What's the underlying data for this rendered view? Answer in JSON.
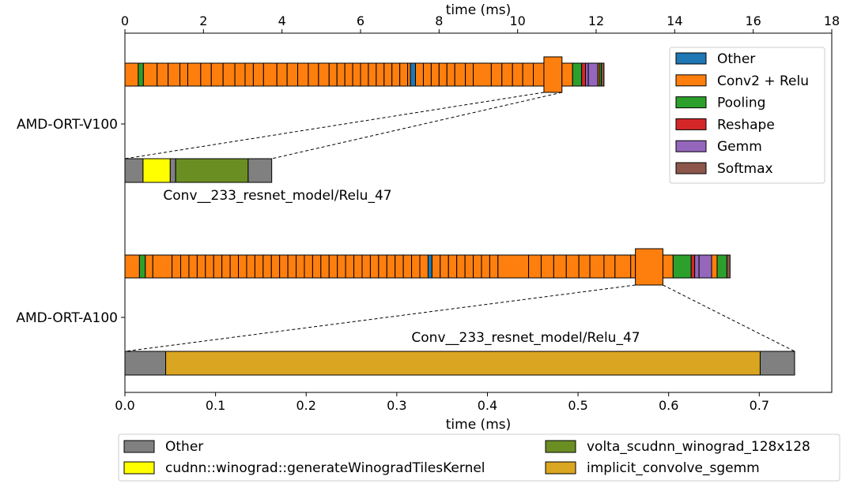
{
  "chart_data": {
    "type": "timeline",
    "top_axis": {
      "label": "time (ms)",
      "range": [
        0,
        18
      ],
      "ticks": [
        "0",
        "2",
        "4",
        "6",
        "8",
        "10",
        "12",
        "14",
        "16",
        "18"
      ]
    },
    "bottom_axis": {
      "label": "time (ms)",
      "range": [
        0.0,
        0.78
      ],
      "ticks": [
        "0.0",
        "0.1",
        "0.2",
        "0.3",
        "0.4",
        "0.5",
        "0.6",
        "0.7"
      ]
    },
    "rows": [
      "AMD-ORT-V100",
      "AMD-ORT-A100"
    ],
    "colors": {
      "Other": "#1f77b4",
      "Conv": "#ff7f0e",
      "Pooling": "#2ca02c",
      "Reshape": "#d62728",
      "Gemm": "#9467bd",
      "Softmax": "#8c564b",
      "K_Other": "#808080",
      "K_wino_tiles": "#ffff00",
      "K_volta": "#6b8e23",
      "K_sgemm": "#daa520"
    },
    "legend_ops": [
      {
        "key": "Other",
        "label": "Other"
      },
      {
        "key": "Conv",
        "label": "Conv2 + Relu"
      },
      {
        "key": "Pooling",
        "label": "Pooling"
      },
      {
        "key": "Reshape",
        "label": "Reshape"
      },
      {
        "key": "Gemm",
        "label": "Gemm"
      },
      {
        "key": "Softmax",
        "label": "Softmax"
      }
    ],
    "legend_kernels": [
      {
        "key": "K_Other",
        "label": "Other"
      },
      {
        "key": "K_wino_tiles",
        "label": "cudnn::winograd::generateWinogradTilesKernel"
      },
      {
        "key": "K_volta",
        "label": "volta_scudnn_winograd_128x128"
      },
      {
        "key": "K_sgemm",
        "label": "implicit_convolve_sgemm"
      }
    ],
    "v100_ops": [
      {
        "start": 0.0,
        "end": 0.34,
        "c": "Conv"
      },
      {
        "start": 0.34,
        "end": 0.47,
        "c": "Pooling"
      },
      {
        "start": 0.47,
        "end": 0.82,
        "c": "Conv"
      },
      {
        "start": 0.82,
        "end": 1.1,
        "c": "Conv"
      },
      {
        "start": 1.1,
        "end": 1.4,
        "c": "Conv"
      },
      {
        "start": 1.4,
        "end": 1.6,
        "c": "Conv"
      },
      {
        "start": 1.6,
        "end": 1.93,
        "c": "Conv"
      },
      {
        "start": 1.93,
        "end": 2.2,
        "c": "Conv"
      },
      {
        "start": 2.2,
        "end": 2.5,
        "c": "Conv"
      },
      {
        "start": 2.5,
        "end": 2.8,
        "c": "Conv"
      },
      {
        "start": 2.8,
        "end": 3.06,
        "c": "Conv"
      },
      {
        "start": 3.06,
        "end": 3.27,
        "c": "Conv"
      },
      {
        "start": 3.27,
        "end": 3.53,
        "c": "Conv"
      },
      {
        "start": 3.53,
        "end": 3.87,
        "c": "Conv"
      },
      {
        "start": 3.87,
        "end": 4.13,
        "c": "Conv"
      },
      {
        "start": 4.13,
        "end": 4.4,
        "c": "Conv"
      },
      {
        "start": 4.4,
        "end": 4.67,
        "c": "Conv"
      },
      {
        "start": 4.67,
        "end": 4.93,
        "c": "Conv"
      },
      {
        "start": 4.93,
        "end": 5.2,
        "c": "Conv"
      },
      {
        "start": 5.2,
        "end": 5.4,
        "c": "Conv"
      },
      {
        "start": 5.4,
        "end": 5.6,
        "c": "Conv"
      },
      {
        "start": 5.6,
        "end": 5.8,
        "c": "Conv"
      },
      {
        "start": 5.8,
        "end": 6.0,
        "c": "Conv"
      },
      {
        "start": 6.0,
        "end": 6.2,
        "c": "Conv"
      },
      {
        "start": 6.2,
        "end": 6.4,
        "c": "Conv"
      },
      {
        "start": 6.4,
        "end": 6.6,
        "c": "Conv"
      },
      {
        "start": 6.6,
        "end": 6.8,
        "c": "Conv"
      },
      {
        "start": 6.8,
        "end": 7.0,
        "c": "Conv"
      },
      {
        "start": 7.0,
        "end": 7.2,
        "c": "Conv"
      },
      {
        "start": 7.2,
        "end": 7.27,
        "c": "Conv"
      },
      {
        "start": 7.27,
        "end": 7.4,
        "c": "Other"
      },
      {
        "start": 7.4,
        "end": 7.6,
        "c": "Conv"
      },
      {
        "start": 7.6,
        "end": 7.8,
        "c": "Conv"
      },
      {
        "start": 7.8,
        "end": 8.0,
        "c": "Conv"
      },
      {
        "start": 8.0,
        "end": 8.2,
        "c": "Conv"
      },
      {
        "start": 8.2,
        "end": 8.4,
        "c": "Conv"
      },
      {
        "start": 8.4,
        "end": 8.67,
        "c": "Conv"
      },
      {
        "start": 8.67,
        "end": 8.87,
        "c": "Conv"
      },
      {
        "start": 8.87,
        "end": 9.33,
        "c": "Conv"
      },
      {
        "start": 9.33,
        "end": 9.6,
        "c": "Conv"
      },
      {
        "start": 9.6,
        "end": 9.87,
        "c": "Conv"
      },
      {
        "start": 9.87,
        "end": 10.13,
        "c": "Conv"
      },
      {
        "start": 10.13,
        "end": 10.4,
        "c": "Conv"
      },
      {
        "start": 10.4,
        "end": 10.67,
        "c": "Conv"
      },
      {
        "start": 10.67,
        "end": 11.13,
        "c": "Conv",
        "hl": true
      },
      {
        "start": 11.13,
        "end": 11.4,
        "c": "Conv"
      },
      {
        "start": 11.4,
        "end": 11.63,
        "c": "Pooling"
      },
      {
        "start": 11.63,
        "end": 11.73,
        "c": "Reshape"
      },
      {
        "start": 11.73,
        "end": 11.8,
        "c": "Gemm"
      },
      {
        "start": 11.8,
        "end": 12.04,
        "c": "Gemm"
      },
      {
        "start": 12.04,
        "end": 12.08,
        "c": "Conv"
      },
      {
        "start": 12.08,
        "end": 12.13,
        "c": "Pooling"
      },
      {
        "start": 12.13,
        "end": 12.2,
        "c": "Softmax"
      }
    ],
    "a100_ops": [
      {
        "start": 0.0,
        "end": 0.37,
        "c": "Conv"
      },
      {
        "start": 0.37,
        "end": 0.52,
        "c": "Pooling"
      },
      {
        "start": 0.52,
        "end": 0.71,
        "c": "Conv"
      },
      {
        "start": 0.71,
        "end": 1.2,
        "c": "Conv"
      },
      {
        "start": 1.2,
        "end": 1.42,
        "c": "Conv"
      },
      {
        "start": 1.42,
        "end": 1.63,
        "c": "Conv"
      },
      {
        "start": 1.63,
        "end": 1.84,
        "c": "Conv"
      },
      {
        "start": 1.84,
        "end": 2.05,
        "c": "Conv"
      },
      {
        "start": 2.05,
        "end": 2.26,
        "c": "Conv"
      },
      {
        "start": 2.26,
        "end": 2.47,
        "c": "Conv"
      },
      {
        "start": 2.47,
        "end": 2.68,
        "c": "Conv"
      },
      {
        "start": 2.68,
        "end": 2.89,
        "c": "Conv"
      },
      {
        "start": 2.89,
        "end": 3.1,
        "c": "Conv"
      },
      {
        "start": 3.1,
        "end": 3.31,
        "c": "Conv"
      },
      {
        "start": 3.31,
        "end": 3.52,
        "c": "Conv"
      },
      {
        "start": 3.52,
        "end": 3.73,
        "c": "Conv"
      },
      {
        "start": 3.73,
        "end": 3.94,
        "c": "Conv"
      },
      {
        "start": 3.94,
        "end": 4.15,
        "c": "Conv"
      },
      {
        "start": 4.15,
        "end": 4.36,
        "c": "Conv"
      },
      {
        "start": 4.36,
        "end": 4.57,
        "c": "Conv"
      },
      {
        "start": 4.57,
        "end": 4.78,
        "c": "Conv"
      },
      {
        "start": 4.78,
        "end": 4.99,
        "c": "Conv"
      },
      {
        "start": 4.99,
        "end": 5.2,
        "c": "Conv"
      },
      {
        "start": 5.2,
        "end": 5.41,
        "c": "Conv"
      },
      {
        "start": 5.41,
        "end": 5.62,
        "c": "Conv"
      },
      {
        "start": 5.62,
        "end": 5.83,
        "c": "Conv"
      },
      {
        "start": 5.83,
        "end": 6.04,
        "c": "Conv"
      },
      {
        "start": 6.04,
        "end": 6.25,
        "c": "Conv"
      },
      {
        "start": 6.25,
        "end": 6.46,
        "c": "Conv"
      },
      {
        "start": 6.46,
        "end": 6.67,
        "c": "Conv"
      },
      {
        "start": 6.67,
        "end": 6.88,
        "c": "Conv"
      },
      {
        "start": 6.88,
        "end": 7.09,
        "c": "Conv"
      },
      {
        "start": 7.09,
        "end": 7.3,
        "c": "Conv"
      },
      {
        "start": 7.3,
        "end": 7.51,
        "c": "Conv"
      },
      {
        "start": 7.51,
        "end": 7.72,
        "c": "Conv"
      },
      {
        "start": 7.72,
        "end": 7.82,
        "c": "Other"
      },
      {
        "start": 7.82,
        "end": 8.03,
        "c": "Conv"
      },
      {
        "start": 8.03,
        "end": 8.24,
        "c": "Conv"
      },
      {
        "start": 8.24,
        "end": 8.45,
        "c": "Conv"
      },
      {
        "start": 8.45,
        "end": 8.66,
        "c": "Conv"
      },
      {
        "start": 8.66,
        "end": 8.87,
        "c": "Conv"
      },
      {
        "start": 8.87,
        "end": 9.08,
        "c": "Conv"
      },
      {
        "start": 9.08,
        "end": 9.29,
        "c": "Conv"
      },
      {
        "start": 9.29,
        "end": 9.5,
        "c": "Conv"
      },
      {
        "start": 9.5,
        "end": 10.28,
        "c": "Conv"
      },
      {
        "start": 10.28,
        "end": 10.6,
        "c": "Conv"
      },
      {
        "start": 10.6,
        "end": 10.92,
        "c": "Conv"
      },
      {
        "start": 10.92,
        "end": 11.24,
        "c": "Conv"
      },
      {
        "start": 11.24,
        "end": 11.56,
        "c": "Conv"
      },
      {
        "start": 11.56,
        "end": 11.84,
        "c": "Conv"
      },
      {
        "start": 11.84,
        "end": 12.2,
        "c": "Conv"
      },
      {
        "start": 12.2,
        "end": 12.48,
        "c": "Conv"
      },
      {
        "start": 12.48,
        "end": 12.88,
        "c": "Conv"
      },
      {
        "start": 12.88,
        "end": 13.0,
        "c": "Conv"
      },
      {
        "start": 13.0,
        "end": 13.7,
        "c": "Conv",
        "hl": true
      },
      {
        "start": 13.7,
        "end": 13.96,
        "c": "Conv"
      },
      {
        "start": 13.96,
        "end": 14.42,
        "c": "Pooling"
      },
      {
        "start": 14.42,
        "end": 14.51,
        "c": "Reshape"
      },
      {
        "start": 14.51,
        "end": 14.62,
        "c": "Gemm"
      },
      {
        "start": 14.62,
        "end": 14.94,
        "c": "Gemm"
      },
      {
        "start": 14.94,
        "end": 15.08,
        "c": "Conv"
      },
      {
        "start": 15.08,
        "end": 15.33,
        "c": "Pooling"
      },
      {
        "start": 15.33,
        "end": 15.41,
        "c": "Softmax"
      }
    ],
    "v100_kernels": [
      {
        "start": 0.0,
        "end": 0.02,
        "c": "K_Other"
      },
      {
        "start": 0.02,
        "end": 0.05,
        "c": "K_wino_tiles"
      },
      {
        "start": 0.05,
        "end": 0.056,
        "c": "K_Other"
      },
      {
        "start": 0.056,
        "end": 0.136,
        "c": "K_volta"
      },
      {
        "start": 0.136,
        "end": 0.162,
        "c": "K_Other"
      }
    ],
    "a100_kernels": [
      {
        "start": 0.0,
        "end": 0.045,
        "c": "K_Other"
      },
      {
        "start": 0.045,
        "end": 0.701,
        "c": "K_sgemm"
      },
      {
        "start": 0.701,
        "end": 0.739,
        "c": "K_Other"
      }
    ],
    "v100_kernel_label": "Conv__233_resnet_model/Relu_47",
    "a100_kernel_label": "Conv__233_resnet_model/Relu_47"
  }
}
